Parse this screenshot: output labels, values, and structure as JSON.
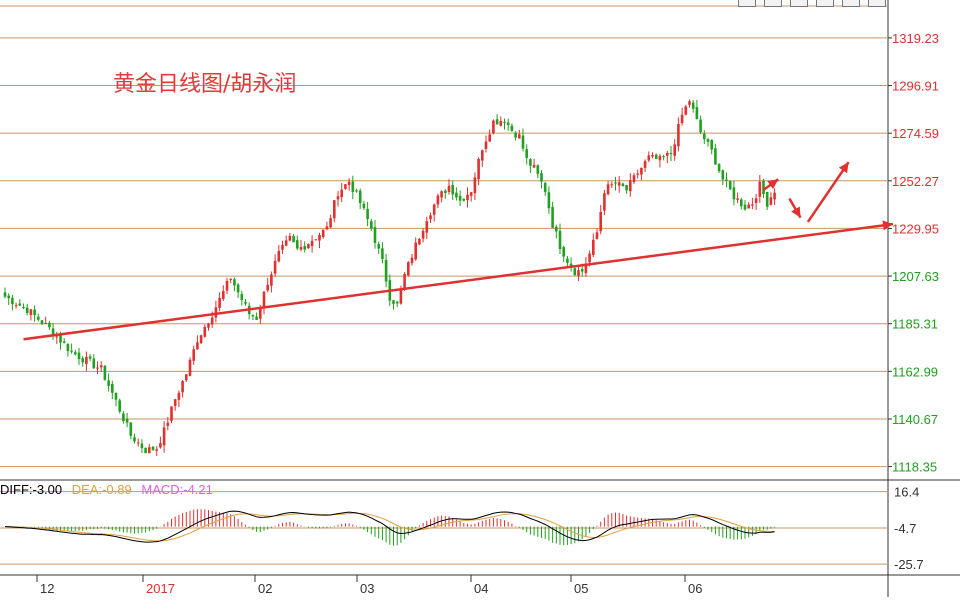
{
  "title": "黄金日线图/胡永润",
  "indicator": {
    "diff_label": "DIFF:-3.00",
    "dea_label": "DEA:-0.89",
    "macd_label": "MACD:-4.21",
    "diff_color": "#000000",
    "dea_color": "#e0a040",
    "macd_color": "#e060e0"
  },
  "colors": {
    "up": "#e03030",
    "down": "#20a020",
    "gridline": "#c89660",
    "axis_text_up": "#e03030",
    "axis_text_down": "#20a020",
    "trendline": "#e03030"
  },
  "chart_data": [
    {
      "type": "candlestick",
      "title": "黄金日线图/胡永润",
      "x_tick_labels": [
        "12",
        "2017",
        "02",
        "03",
        "04",
        "05",
        "06"
      ],
      "y_tick_labels": [
        "1319.23",
        "1296.91",
        "1274.59",
        "1252.27",
        "1229.95",
        "1207.63",
        "1185.31",
        "1162.99",
        "1140.67",
        "1118.35"
      ],
      "y_ticks": [
        1319.23,
        1296.91,
        1274.59,
        1252.27,
        1229.95,
        1207.63,
        1185.31,
        1162.99,
        1140.67,
        1118.35
      ],
      "ylim": [
        1113,
        1337
      ],
      "grid": true,
      "close_path": [
        [
          0,
          1198
        ],
        [
          6,
          1192
        ],
        [
          12,
          1183
        ],
        [
          18,
          1172
        ],
        [
          22,
          1168
        ],
        [
          26,
          1164
        ],
        [
          30,
          1149
        ],
        [
          34,
          1133
        ],
        [
          38,
          1126
        ],
        [
          41,
          1127
        ],
        [
          43,
          1135
        ],
        [
          46,
          1150
        ],
        [
          49,
          1162
        ],
        [
          52,
          1178
        ],
        [
          56,
          1190
        ],
        [
          59,
          1200
        ],
        [
          61,
          1207
        ],
        [
          63,
          1200
        ],
        [
          66,
          1190
        ],
        [
          68,
          1188
        ],
        [
          71,
          1205
        ],
        [
          74,
          1218
        ],
        [
          77,
          1225
        ],
        [
          79,
          1220
        ],
        [
          81,
          1222
        ],
        [
          84,
          1226
        ],
        [
          87,
          1230
        ],
        [
          90,
          1247
        ],
        [
          93,
          1252
        ],
        [
          96,
          1242
        ],
        [
          99,
          1230
        ],
        [
          102,
          1214
        ],
        [
          104,
          1198
        ],
        [
          106,
          1194
        ],
        [
          108,
          1208
        ],
        [
          111,
          1222
        ],
        [
          114,
          1235
        ],
        [
          117,
          1244
        ],
        [
          120,
          1250
        ],
        [
          123,
          1243
        ],
        [
          126,
          1248
        ],
        [
          129,
          1268
        ],
        [
          132,
          1280
        ],
        [
          135,
          1281
        ],
        [
          137,
          1276
        ],
        [
          139,
          1273
        ],
        [
          141,
          1262
        ],
        [
          143,
          1258
        ],
        [
          146,
          1248
        ],
        [
          148,
          1232
        ],
        [
          150,
          1222
        ],
        [
          152,
          1215
        ],
        [
          154,
          1210
        ],
        [
          156,
          1210
        ],
        [
          158,
          1218
        ],
        [
          160,
          1228
        ],
        [
          162,
          1248
        ],
        [
          165,
          1251
        ],
        [
          168,
          1248
        ],
        [
          171,
          1256
        ],
        [
          174,
          1263
        ],
        [
          177,
          1262
        ],
        [
          180,
          1265
        ],
        [
          183,
          1283
        ],
        [
          185,
          1290
        ],
        [
          188,
          1275
        ],
        [
          191,
          1266
        ],
        [
          194,
          1253
        ],
        [
          197,
          1245
        ],
        [
          200,
          1240
        ],
        [
          202,
          1242
        ],
        [
          204,
          1250
        ],
        [
          206,
          1242
        ],
        [
          208,
          1248
        ]
      ],
      "trendline": {
        "from": [
          5,
          1178
        ],
        "to": [
          240,
          1232
        ]
      },
      "arrows": [
        {
          "from": [
            205,
            1248
          ],
          "to": [
            209,
            1253
          ]
        },
        {
          "from": [
            212,
            1244
          ],
          "to": [
            215,
            1235
          ]
        },
        {
          "from": [
            217,
            1233
          ],
          "to": [
            228,
            1261
          ]
        }
      ]
    },
    {
      "type": "macd",
      "y_tick_labels": [
        "16.4",
        "-4.7",
        "-25.7"
      ],
      "y_ticks": [
        16.4,
        -4.7,
        -25.7
      ],
      "ylim": [
        -32,
        22
      ],
      "diff": -3.0,
      "dea": -0.89,
      "macd": -4.21
    }
  ]
}
